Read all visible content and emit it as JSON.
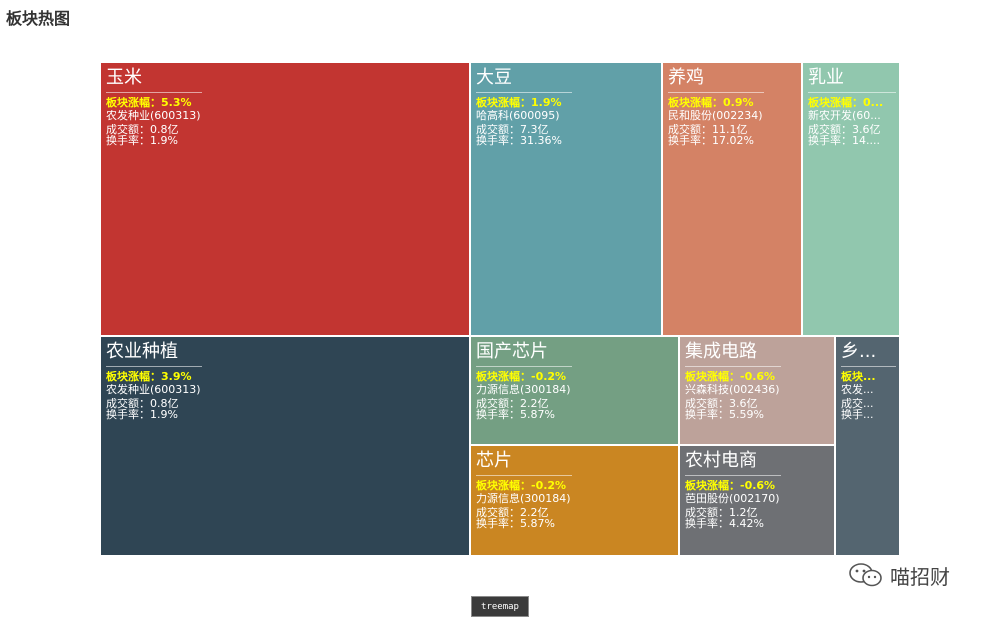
{
  "page": {
    "title": "板块热图"
  },
  "footer": {
    "button_label": "treemap",
    "watermark_text": "喵招财"
  },
  "chart_data": {
    "type": "treemap",
    "title": "",
    "tiles": [
      {
        "name": "玉米",
        "change": "板块涨幅：5.3%",
        "stock": "农发种业(600313)",
        "turnover": "成交额：0.8亿",
        "turnover_rate": "换手率：1.9%",
        "color": "#c23531"
      },
      {
        "name": "大豆",
        "change": "板块涨幅：1.9%",
        "stock": "哈高科(600095)",
        "turnover": "成交额：7.3亿",
        "turnover_rate": "换手率：31.36%",
        "color": "#61a0a8"
      },
      {
        "name": "养鸡",
        "change": "板块涨幅：0.9%",
        "stock": "民和股份(002234)",
        "turnover": "成交额：11.1亿",
        "turnover_rate": "换手率：17.02%",
        "color": "#d48265"
      },
      {
        "name": "乳业",
        "change": "板块涨幅：0...",
        "stock": "新农开发(60...",
        "turnover": "成交额：3.6亿",
        "turnover_rate": "换手率：14....",
        "color": "#91c7ae"
      },
      {
        "name": "农业种植",
        "change": "板块涨幅：3.9%",
        "stock": "农发种业(600313)",
        "turnover": "成交额：0.8亿",
        "turnover_rate": "换手率：1.9%",
        "color": "#2f4554"
      },
      {
        "name": "国产芯片",
        "change": "板块涨幅：-0.2%",
        "stock": "力源信息(300184)",
        "turnover": "成交额：2.2亿",
        "turnover_rate": "换手率：5.87%",
        "color": "#749f83"
      },
      {
        "name": "集成电路",
        "change": "板块涨幅：-0.6%",
        "stock": "兴森科技(002436)",
        "turnover": "成交额：3.6亿",
        "turnover_rate": "换手率：5.59%",
        "color": "#bda29a"
      },
      {
        "name": "乡...",
        "change": "板块...",
        "stock": "农发...",
        "turnover": "成交...",
        "turnover_rate": "换手...",
        "color": "#546570"
      },
      {
        "name": "芯片",
        "change": "板块涨幅：-0.2%",
        "stock": "力源信息(300184)",
        "turnover": "成交额：2.2亿",
        "turnover_rate": "换手率：5.87%",
        "color": "#ca8622"
      },
      {
        "name": "农村电商",
        "change": "板块涨幅：-0.6%",
        "stock": "芭田股份(002170)",
        "turnover": "成交额：1.2亿",
        "turnover_rate": "换手率：4.42%",
        "color": "#6e7074"
      }
    ]
  }
}
